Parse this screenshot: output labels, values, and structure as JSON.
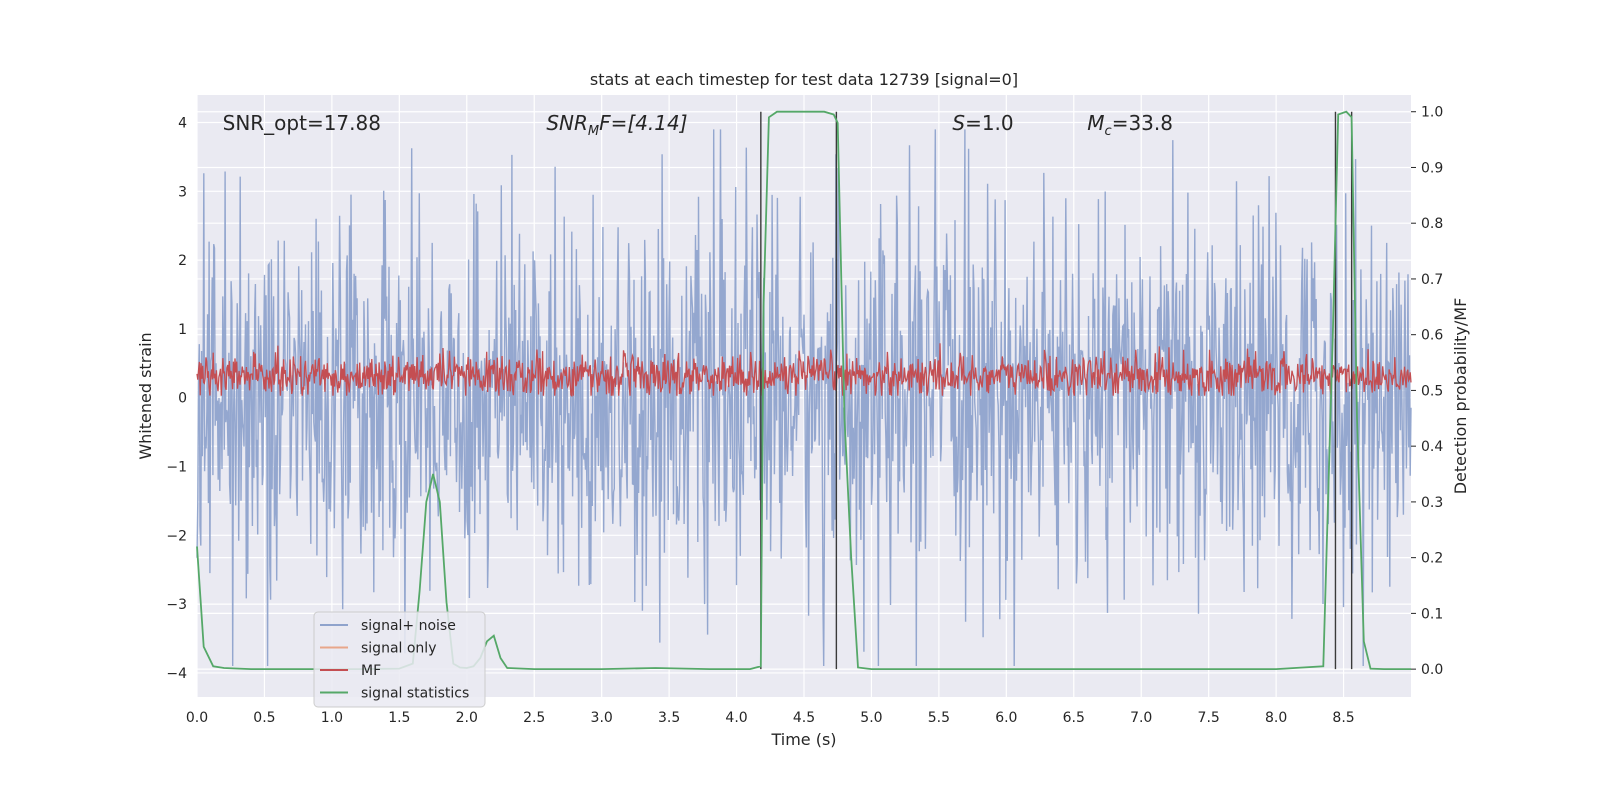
{
  "chart_data": {
    "type": "line",
    "title": "stats at each timestep for test data 12739 [signal=0]",
    "xlabel": "Time (s)",
    "ylabel_left": "Whitened strain",
    "ylabel_right": "Detection probability/MF",
    "xlim": [
      0.0,
      9.0
    ],
    "ylim_left": [
      -4.35,
      4.4
    ],
    "ylim_right": [
      -0.05,
      1.03
    ],
    "x_ticks": [
      "0.0",
      "0.5",
      "1.0",
      "1.5",
      "2.0",
      "2.5",
      "3.0",
      "3.5",
      "4.0",
      "4.5",
      "5.0",
      "5.5",
      "6.0",
      "6.5",
      "7.0",
      "7.5",
      "8.0",
      "8.5"
    ],
    "y_ticks_left": [
      "4",
      "3",
      "2",
      "1",
      "0",
      "−1",
      "−2",
      "−3",
      "−4"
    ],
    "y_ticks_right": [
      "1.0",
      "0.9",
      "0.8",
      "0.7",
      "0.6",
      "0.5",
      "0.4",
      "0.3",
      "0.2",
      "0.1",
      "0.0"
    ],
    "grid": true,
    "legend_position": "lower-left",
    "annotations": {
      "snr_opt": "SNR_opt=17.88",
      "snr_mf_main": "SNR",
      "snr_mf_sub": "M",
      "snr_mf_rest": "F=[4.14]",
      "s_main": "S",
      "s_rest": "=1.0",
      "mc_main": "M",
      "mc_sub": "c",
      "mc_rest": "=33.8"
    },
    "series": [
      {
        "name": "signal+ noise",
        "color": "#8fa3cc",
        "axis": "left"
      },
      {
        "name": "signal only",
        "color": "#e8a68a",
        "axis": "left"
      },
      {
        "name": "MF",
        "color": "#c44e52",
        "axis": "left"
      },
      {
        "name": "signal statistics",
        "color": "#55a868",
        "axis": "right",
        "x": [
          0.0,
          0.05,
          0.12,
          0.2,
          0.4,
          0.8,
          1.2,
          1.5,
          1.6,
          1.65,
          1.7,
          1.75,
          1.8,
          1.85,
          1.9,
          1.95,
          2.0,
          2.05,
          2.1,
          2.15,
          2.2,
          2.25,
          2.3,
          2.5,
          3.0,
          3.4,
          3.8,
          4.1,
          4.18,
          4.2,
          4.24,
          4.3,
          4.5,
          4.65,
          4.72,
          4.75,
          4.8,
          4.85,
          4.9,
          5.0,
          6.0,
          7.0,
          8.0,
          8.35,
          8.42,
          8.46,
          8.52,
          8.56,
          8.6,
          8.65,
          8.7,
          8.8,
          9.0
        ],
        "y": [
          0.22,
          0.04,
          0.005,
          0.002,
          0.0,
          0.0,
          0.0,
          0.001,
          0.01,
          0.14,
          0.3,
          0.35,
          0.3,
          0.12,
          0.01,
          0.003,
          0.002,
          0.005,
          0.02,
          0.05,
          0.06,
          0.02,
          0.002,
          0.0,
          0.0,
          0.002,
          0.0,
          0.0,
          0.005,
          0.65,
          0.99,
          1.0,
          1.0,
          1.0,
          0.995,
          0.98,
          0.45,
          0.2,
          0.003,
          0.0,
          0.0,
          0.0,
          0.0,
          0.005,
          0.6,
          0.995,
          1.0,
          0.99,
          0.45,
          0.05,
          0.001,
          0.0,
          0.0
        ]
      },
      {
        "name": "vertical markers",
        "color": "#3a3a3a",
        "axis": "right",
        "x": [
          4.18,
          4.74,
          8.44,
          8.56
        ]
      }
    ]
  }
}
